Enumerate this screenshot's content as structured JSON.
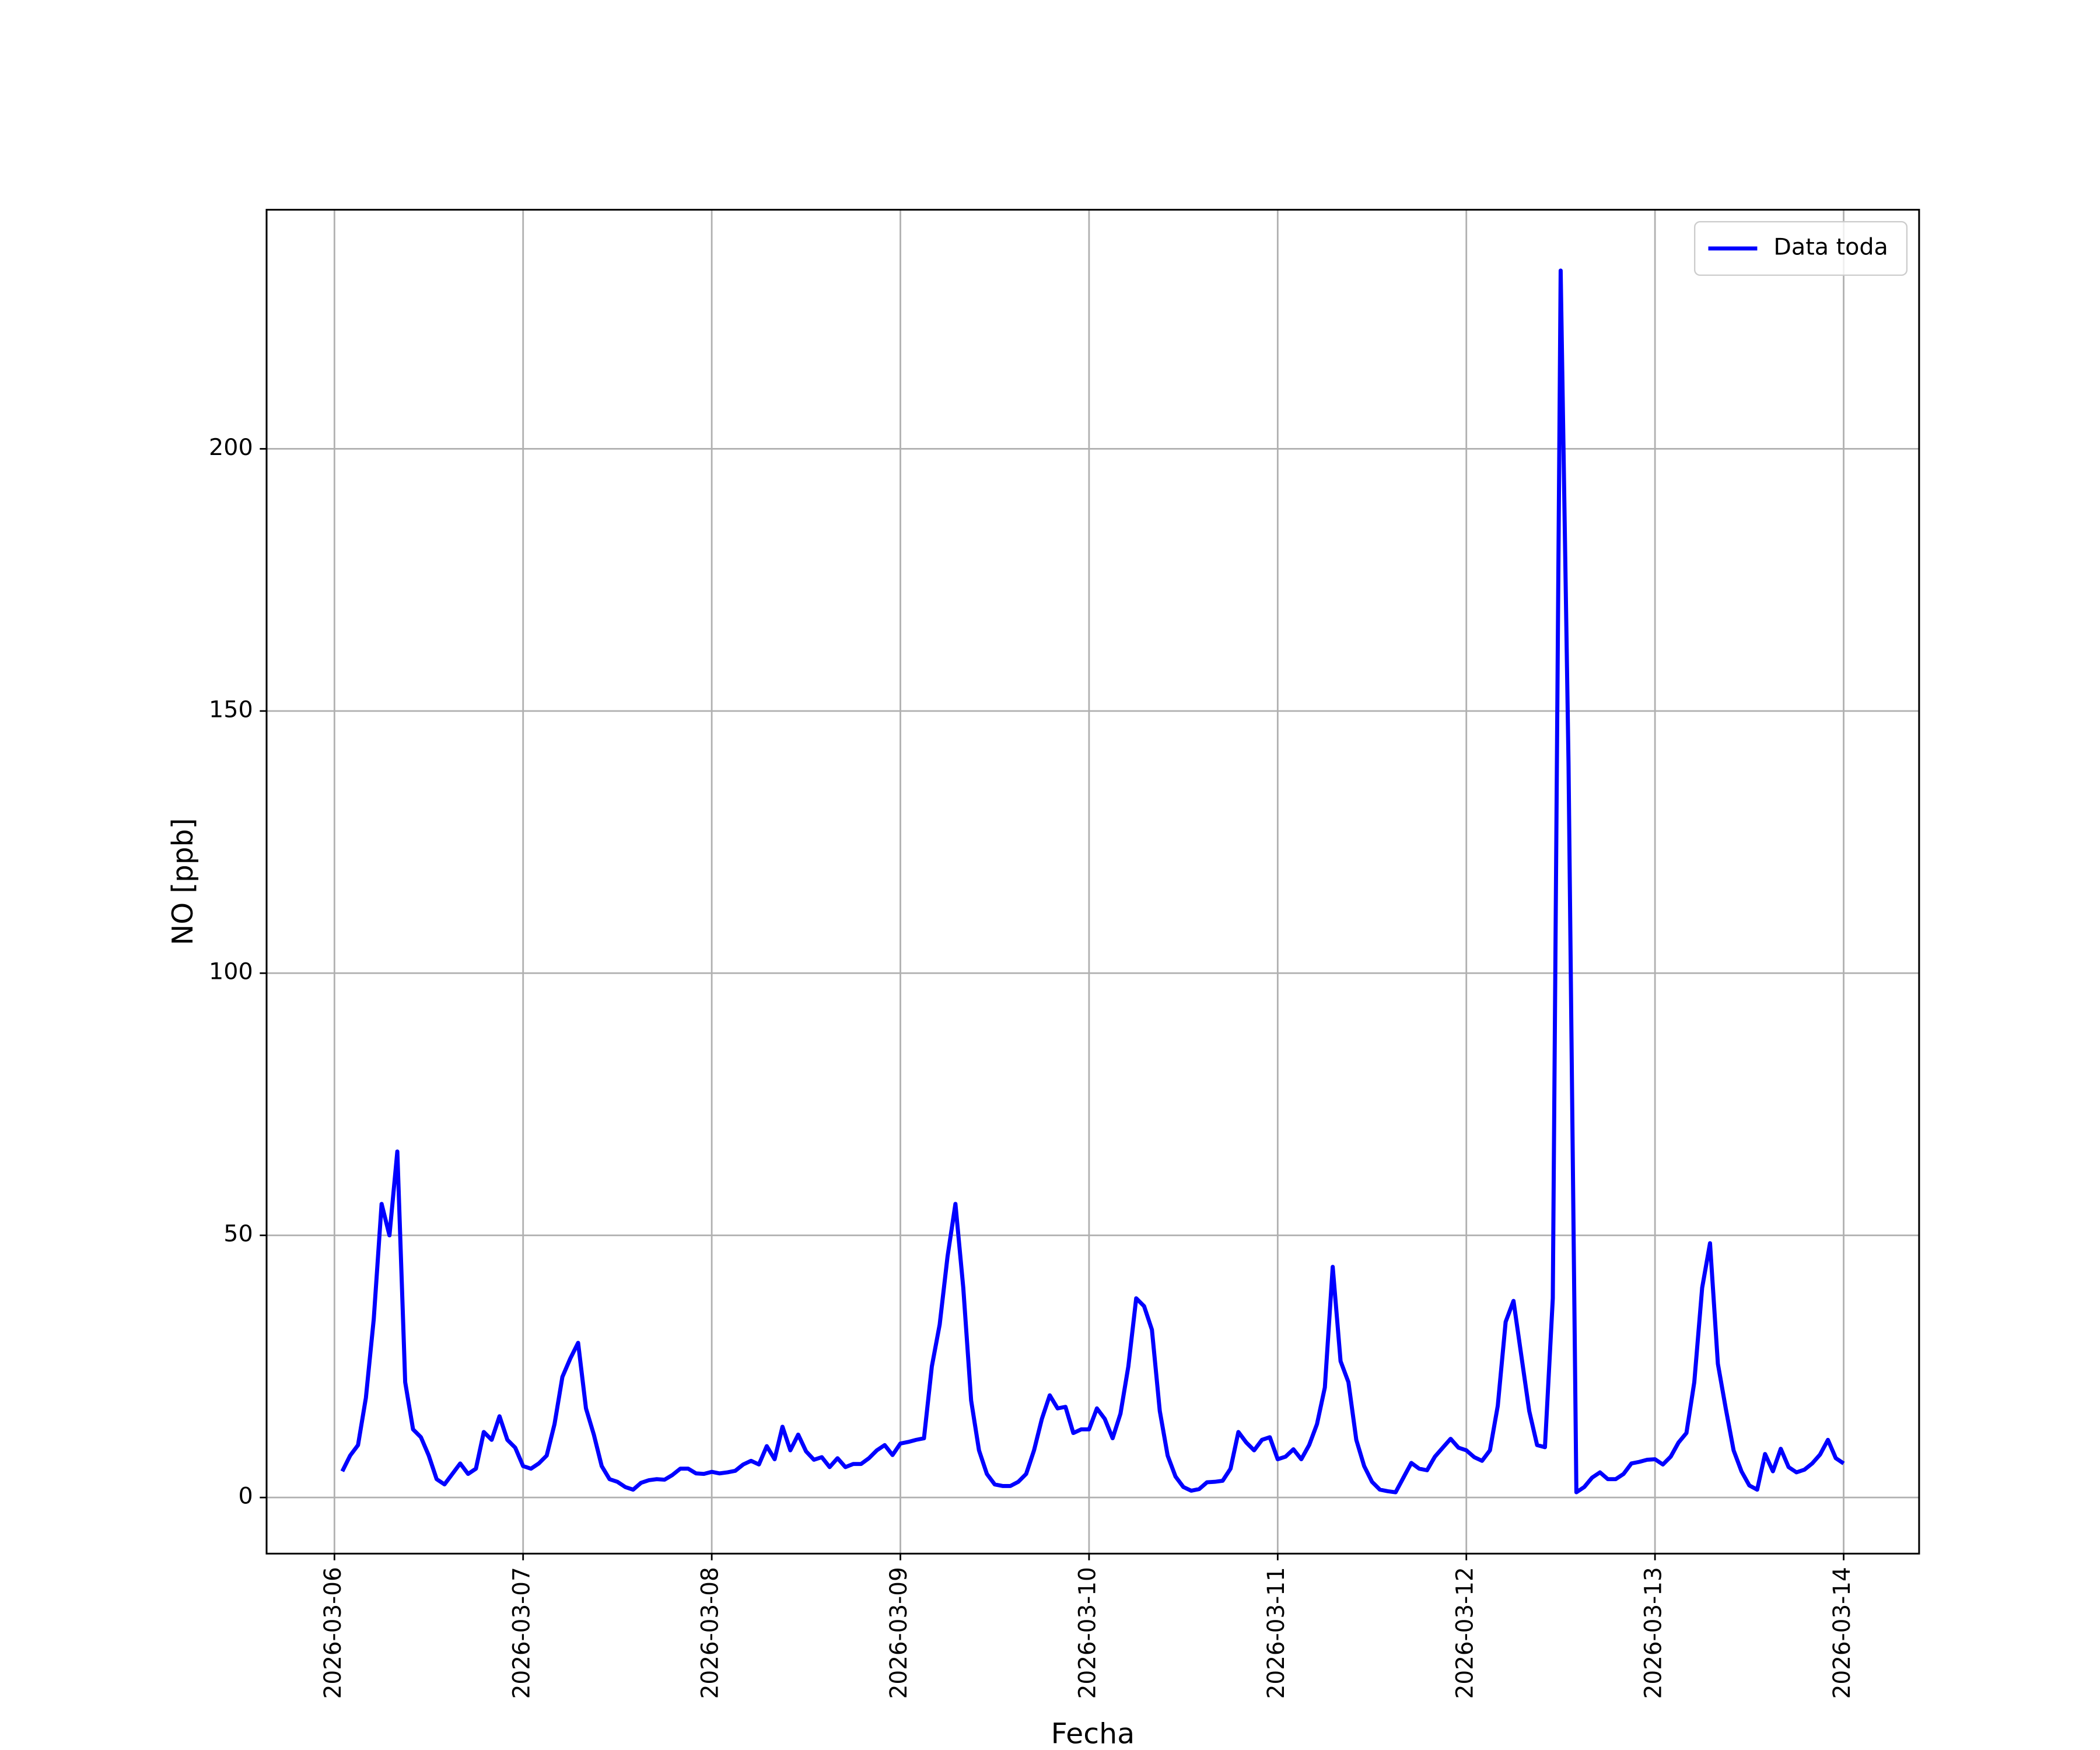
{
  "chart_data": {
    "type": "line",
    "x_label": "Fecha",
    "y_label": "NO [ppb]",
    "x": [
      "2026-03-06T01:00",
      "2026-03-06T02:00",
      "2026-03-06T03:00",
      "2026-03-06T04:00",
      "2026-03-06T05:00",
      "2026-03-06T06:00",
      "2026-03-06T07:00",
      "2026-03-06T08:00",
      "2026-03-06T09:00",
      "2026-03-06T10:00",
      "2026-03-06T11:00",
      "2026-03-06T12:00",
      "2026-03-06T13:00",
      "2026-03-06T14:00",
      "2026-03-06T15:00",
      "2026-03-06T16:00",
      "2026-03-06T17:00",
      "2026-03-06T18:00",
      "2026-03-06T19:00",
      "2026-03-06T20:00",
      "2026-03-06T21:00",
      "2026-03-06T22:00",
      "2026-03-06T23:00",
      "2026-03-07T00:00",
      "2026-03-07T01:00",
      "2026-03-07T02:00",
      "2026-03-07T03:00",
      "2026-03-07T04:00",
      "2026-03-07T05:00",
      "2026-03-07T06:00",
      "2026-03-07T07:00",
      "2026-03-07T08:00",
      "2026-03-07T09:00",
      "2026-03-07T10:00",
      "2026-03-07T11:00",
      "2026-03-07T12:00",
      "2026-03-07T13:00",
      "2026-03-07T14:00",
      "2026-03-07T15:00",
      "2026-03-07T16:00",
      "2026-03-07T17:00",
      "2026-03-07T18:00",
      "2026-03-07T19:00",
      "2026-03-07T20:00",
      "2026-03-07T21:00",
      "2026-03-07T22:00",
      "2026-03-07T23:00",
      "2026-03-08T00:00",
      "2026-03-08T01:00",
      "2026-03-08T02:00",
      "2026-03-08T03:00",
      "2026-03-08T04:00",
      "2026-03-08T05:00",
      "2026-03-08T06:00",
      "2026-03-08T07:00",
      "2026-03-08T08:00",
      "2026-03-08T09:00",
      "2026-03-08T10:00",
      "2026-03-08T11:00",
      "2026-03-08T12:00",
      "2026-03-08T13:00",
      "2026-03-08T14:00",
      "2026-03-08T15:00",
      "2026-03-08T16:00",
      "2026-03-08T17:00",
      "2026-03-08T18:00",
      "2026-03-08T19:00",
      "2026-03-08T20:00",
      "2026-03-08T21:00",
      "2026-03-08T22:00",
      "2026-03-08T23:00",
      "2026-03-09T00:00",
      "2026-03-09T01:00",
      "2026-03-09T02:00",
      "2026-03-09T03:00",
      "2026-03-09T04:00",
      "2026-03-09T05:00",
      "2026-03-09T06:00",
      "2026-03-09T07:00",
      "2026-03-09T08:00",
      "2026-03-09T09:00",
      "2026-03-09T10:00",
      "2026-03-09T11:00",
      "2026-03-09T12:00",
      "2026-03-09T13:00",
      "2026-03-09T14:00",
      "2026-03-09T15:00",
      "2026-03-09T16:00",
      "2026-03-09T17:00",
      "2026-03-09T18:00",
      "2026-03-09T19:00",
      "2026-03-09T20:00",
      "2026-03-09T21:00",
      "2026-03-09T22:00",
      "2026-03-09T23:00",
      "2026-03-10T00:00",
      "2026-03-10T01:00",
      "2026-03-10T02:00",
      "2026-03-10T03:00",
      "2026-03-10T04:00",
      "2026-03-10T05:00",
      "2026-03-10T06:00",
      "2026-03-10T07:00",
      "2026-03-10T08:00",
      "2026-03-10T09:00",
      "2026-03-10T10:00",
      "2026-03-10T11:00",
      "2026-03-10T12:00",
      "2026-03-10T13:00",
      "2026-03-10T14:00",
      "2026-03-10T15:00",
      "2026-03-10T16:00",
      "2026-03-10T17:00",
      "2026-03-10T18:00",
      "2026-03-10T19:00",
      "2026-03-10T20:00",
      "2026-03-10T21:00",
      "2026-03-10T22:00",
      "2026-03-10T23:00",
      "2026-03-11T00:00",
      "2026-03-11T01:00",
      "2026-03-11T02:00",
      "2026-03-11T03:00",
      "2026-03-11T04:00",
      "2026-03-11T05:00",
      "2026-03-11T06:00",
      "2026-03-11T07:00",
      "2026-03-11T08:00",
      "2026-03-11T09:00",
      "2026-03-11T10:00",
      "2026-03-11T11:00",
      "2026-03-11T12:00",
      "2026-03-11T13:00",
      "2026-03-11T14:00",
      "2026-03-11T15:00",
      "2026-03-11T16:00",
      "2026-03-11T17:00",
      "2026-03-11T18:00",
      "2026-03-11T19:00",
      "2026-03-11T20:00",
      "2026-03-11T21:00",
      "2026-03-11T22:00",
      "2026-03-11T23:00",
      "2026-03-12T00:00",
      "2026-03-12T01:00",
      "2026-03-12T02:00",
      "2026-03-12T03:00",
      "2026-03-12T04:00",
      "2026-03-12T05:00",
      "2026-03-12T06:00",
      "2026-03-12T07:00",
      "2026-03-12T08:00",
      "2026-03-12T09:00",
      "2026-03-12T10:00",
      "2026-03-12T11:00",
      "2026-03-12T12:00",
      "2026-03-12T13:00",
      "2026-03-12T14:00",
      "2026-03-12T15:00",
      "2026-03-12T16:00",
      "2026-03-12T17:00",
      "2026-03-12T18:00",
      "2026-03-12T19:00",
      "2026-03-12T20:00",
      "2026-03-12T21:00",
      "2026-03-12T22:00",
      "2026-03-12T23:00",
      "2026-03-13T00:00",
      "2026-03-13T01:00",
      "2026-03-13T02:00",
      "2026-03-13T03:00",
      "2026-03-13T04:00",
      "2026-03-13T05:00",
      "2026-03-13T06:00",
      "2026-03-13T07:00",
      "2026-03-13T08:00",
      "2026-03-13T09:00",
      "2026-03-13T10:00",
      "2026-03-13T11:00",
      "2026-03-13T12:00",
      "2026-03-13T13:00",
      "2026-03-13T14:00",
      "2026-03-13T15:00",
      "2026-03-13T16:00",
      "2026-03-13T17:00",
      "2026-03-13T18:00",
      "2026-03-13T19:00",
      "2026-03-13T20:00",
      "2026-03-13T21:00",
      "2026-03-13T22:00",
      "2026-03-13T23:00",
      "2026-03-14T00:00"
    ],
    "series": [
      {
        "name": "Data toda",
        "color": "#0000ff",
        "values": [
          5,
          8,
          10,
          19,
          34,
          56,
          50,
          66,
          22,
          13,
          11.5,
          8,
          3.5,
          2.5,
          4.5,
          6.5,
          4.5,
          5.5,
          12.5,
          11,
          15.5,
          11,
          9.5,
          6,
          5.5,
          6.5,
          8,
          14,
          23,
          26.5,
          29.5,
          17,
          12,
          6,
          3.5,
          3,
          2,
          1.5,
          2.8,
          3.3,
          3.5,
          3.4,
          4.3,
          5.5,
          5.5,
          4.6,
          4.5,
          4.9,
          4.6,
          4.8,
          5.1,
          6.3,
          7,
          6.3,
          9.8,
          7.3,
          13.5,
          9,
          12,
          8.8,
          7.2,
          7.7,
          5.8,
          7.5,
          5.8,
          6.4,
          6.4,
          7.5,
          9,
          10,
          8.1,
          10.3,
          10.6,
          11,
          11.3,
          25,
          33,
          46,
          56,
          40,
          18.5,
          9,
          4.5,
          2.5,
          2.2,
          2.2,
          3,
          4.5,
          9,
          15,
          19.5,
          17,
          17.3,
          12.3,
          13,
          13,
          17,
          15,
          11.3,
          16,
          25,
          38,
          36.5,
          32,
          16.5,
          8,
          4,
          2,
          1.3,
          1.6,
          2.9,
          3,
          3.2,
          5.5,
          12.5,
          10.5,
          9,
          11,
          11.5,
          7.3,
          7.8,
          9.2,
          7.3,
          10,
          14,
          21,
          44,
          26,
          22,
          11,
          6,
          3,
          1.5,
          1.2,
          1,
          3.8,
          6.6,
          5.5,
          5.2,
          7.8,
          9.5,
          11.2,
          9.5,
          9,
          7.7,
          7,
          9,
          17.5,
          33.5,
          37.5,
          27,
          16.5,
          10,
          9.6,
          38,
          234,
          140,
          1,
          2,
          3.8,
          4.8,
          3.5,
          3.5,
          4.5,
          6.5,
          6.8,
          7.2,
          7.3,
          6.3,
          7.8,
          10.5,
          12.3,
          22,
          40,
          48.5,
          25.5,
          17,
          9,
          5,
          2.3,
          1.5,
          8.3,
          5,
          9.3,
          5.8,
          4.8,
          5.3,
          6.5,
          8.2,
          11,
          7.5,
          6.5
        ]
      }
    ],
    "xlim": [
      "2026-03-05T15:22",
      "2026-03-14T09:36"
    ],
    "xticks": [
      "2026-03-06",
      "2026-03-07",
      "2026-03-08",
      "2026-03-09",
      "2026-03-10",
      "2026-03-11",
      "2026-03-12",
      "2026-03-13",
      "2026-03-14"
    ],
    "ylim": [
      -10.7,
      245.6
    ],
    "yticks": [
      0,
      50,
      100,
      150,
      200
    ],
    "grid": true,
    "legend": "upper right"
  }
}
